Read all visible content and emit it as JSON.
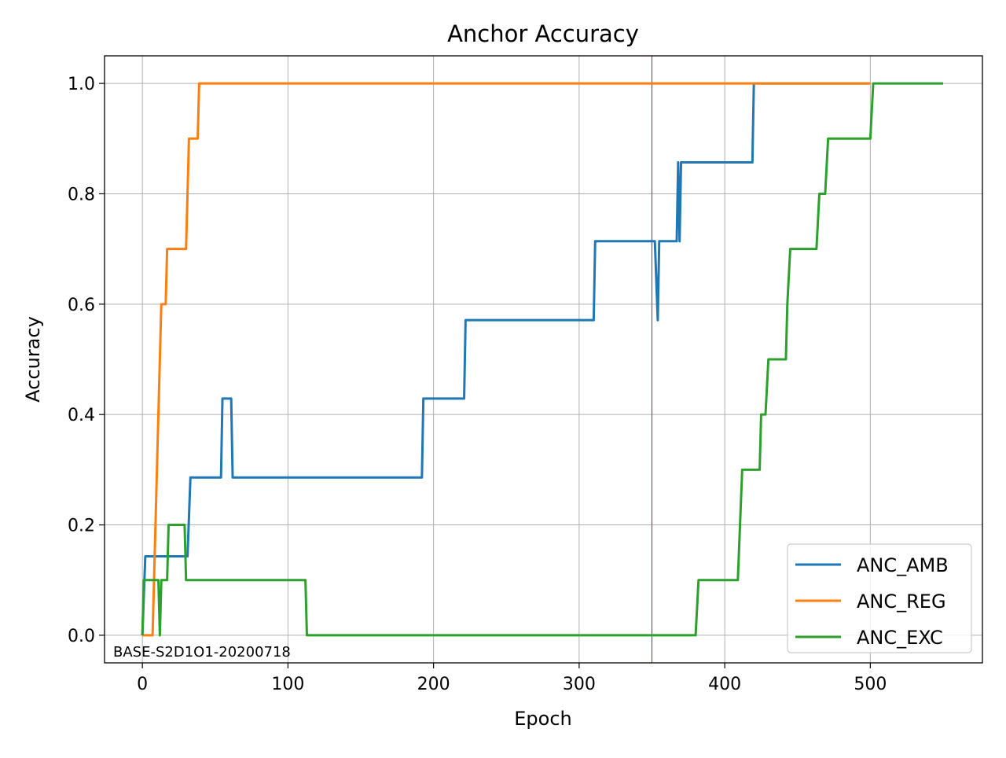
{
  "chart_data": {
    "type": "line",
    "title": "Anchor Accuracy",
    "xlabel": "Epoch",
    "ylabel": "Accuracy",
    "xlim": [
      -26,
      577
    ],
    "ylim": [
      -0.05,
      1.05
    ],
    "xticks": [
      0,
      100,
      200,
      300,
      400,
      500
    ],
    "xtick_labels": [
      "0",
      "100",
      "200",
      "300",
      "400",
      "500"
    ],
    "yticks": [
      0.0,
      0.2,
      0.4,
      0.6,
      0.8,
      1.0
    ],
    "ytick_labels": [
      "0.0",
      "0.2",
      "0.4",
      "0.6",
      "0.8",
      "1.0"
    ],
    "grid": true,
    "legend_position": "lower-right",
    "vline": {
      "x": 350,
      "color": "#ff0000"
    },
    "annotation": "BASE-S2D1O1-20200718",
    "series": [
      {
        "name": "ANC_AMB",
        "color": "#1f77b4",
        "points": [
          [
            0,
            0
          ],
          [
            2,
            0.143
          ],
          [
            31,
            0.143
          ],
          [
            33,
            0.286
          ],
          [
            54,
            0.286
          ],
          [
            55,
            0.429
          ],
          [
            61,
            0.429
          ],
          [
            62,
            0.286
          ],
          [
            192,
            0.286
          ],
          [
            193,
            0.429
          ],
          [
            221,
            0.429
          ],
          [
            222,
            0.571
          ],
          [
            310,
            0.571
          ],
          [
            311,
            0.714
          ],
          [
            352,
            0.714
          ],
          [
            354,
            0.571
          ],
          [
            355,
            0.714
          ],
          [
            367,
            0.714
          ],
          [
            368,
            0.857
          ],
          [
            369,
            0.714
          ],
          [
            370,
            0.857
          ],
          [
            419,
            0.857
          ],
          [
            420,
            1.0
          ],
          [
            500,
            1.0
          ]
        ]
      },
      {
        "name": "ANC_REG",
        "color": "#ff7f0e",
        "points": [
          [
            0,
            0
          ],
          [
            7,
            0
          ],
          [
            13,
            0.6
          ],
          [
            16,
            0.6
          ],
          [
            17,
            0.7
          ],
          [
            30,
            0.7
          ],
          [
            31,
            0.8
          ],
          [
            32,
            0.9
          ],
          [
            38,
            0.9
          ],
          [
            39,
            1.0
          ],
          [
            500,
            1.0
          ]
        ]
      },
      {
        "name": "ANC_EXC",
        "color": "#2ca02c",
        "points": [
          [
            0,
            0
          ],
          [
            1,
            0.1
          ],
          [
            11,
            0.1
          ],
          [
            12,
            0
          ],
          [
            13,
            0.1
          ],
          [
            17,
            0.1
          ],
          [
            18,
            0.2
          ],
          [
            29,
            0.2
          ],
          [
            30,
            0.1
          ],
          [
            112,
            0.1
          ],
          [
            113,
            0
          ],
          [
            380,
            0
          ],
          [
            382,
            0.1
          ],
          [
            409,
            0.1
          ],
          [
            412,
            0.3
          ],
          [
            424,
            0.3
          ],
          [
            425,
            0.4
          ],
          [
            428,
            0.4
          ],
          [
            430,
            0.5
          ],
          [
            442,
            0.5
          ],
          [
            443,
            0.6
          ],
          [
            445,
            0.7
          ],
          [
            463,
            0.7
          ],
          [
            465,
            0.8
          ],
          [
            469,
            0.8
          ],
          [
            471,
            0.9
          ],
          [
            500,
            0.9
          ],
          [
            502,
            1.0
          ],
          [
            550,
            1.0
          ]
        ]
      }
    ]
  }
}
